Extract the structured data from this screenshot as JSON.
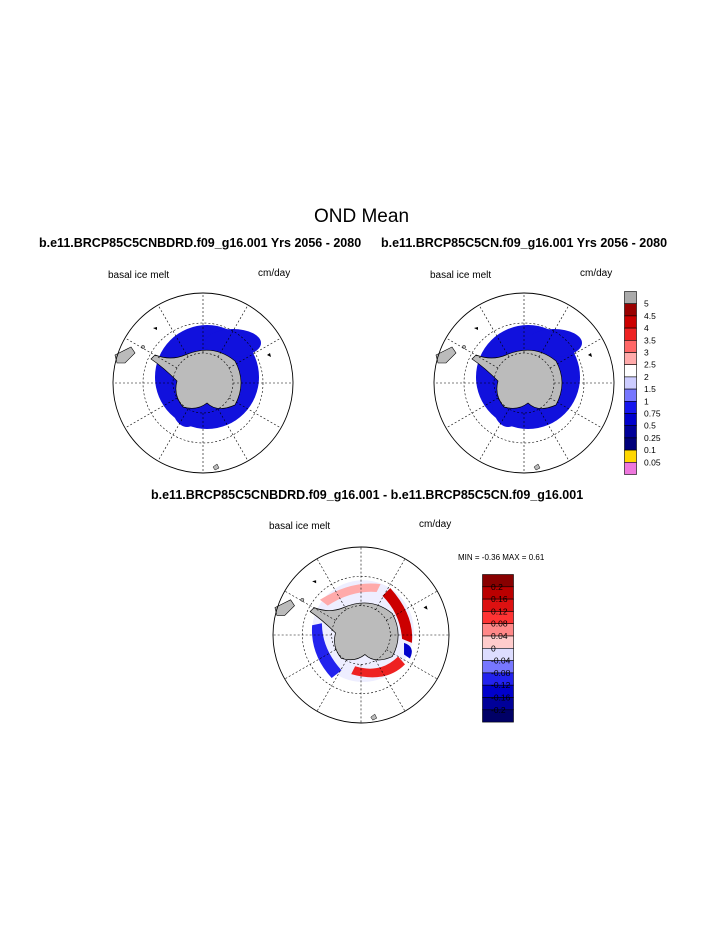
{
  "page": {
    "title": "OND Mean"
  },
  "panels": {
    "left": {
      "case_title": "b.e11.BRCP85C5CNBDRD.f09_g16.001  Yrs 2056 - 2080",
      "field": "basal ice melt",
      "units": "cm/day"
    },
    "right": {
      "case_title": "b.e11.BRCP85C5CN.f09_g16.001  Yrs 2056 - 2080",
      "field": "basal ice melt",
      "units": "cm/day"
    },
    "diff": {
      "case_title": "b.e11.BRCP85C5CNBDRD.f09_g16.001 - b.e11.BRCP85C5CN.f09_g16.001",
      "field": "basal ice melt",
      "units": "cm/day",
      "minmax": "MIN =  -0.36 MAX =   0.61"
    }
  },
  "chart_data": [
    {
      "type": "heatmap",
      "projection": "south polar stereographic",
      "title": "b.e11.BRCP85C5CNBDRD.f09_g16.001  Yrs 2056 - 2080",
      "field": "basal ice melt",
      "units": "cm/day",
      "grid": true
    },
    {
      "type": "heatmap",
      "projection": "south polar stereographic",
      "title": "b.e11.BRCP85C5CN.f09_g16.001  Yrs 2056 - 2080",
      "field": "basal ice melt",
      "units": "cm/day",
      "grid": true,
      "colorbar": {
        "labels": [
          "5",
          "4.5",
          "4",
          "3.5",
          "3",
          "2.5",
          "2",
          "1.5",
          "1",
          "0.75",
          "0.5",
          "0.25",
          "0.1",
          "0.05"
        ],
        "colors": [
          "#aaaaaa",
          "#990000",
          "#cc0000",
          "#ee2222",
          "#ff6666",
          "#ffaaaa",
          "#ffffff",
          "#ccccff",
          "#7777ff",
          "#1515ee",
          "#0000cc",
          "#000099",
          "#00007a",
          "#ffd700",
          "#ee77dd"
        ]
      }
    },
    {
      "type": "heatmap",
      "projection": "south polar stereographic",
      "title": "b.e11.BRCP85C5CNBDRD.f09_g16.001 - b.e11.BRCP85C5CN.f09_g16.001",
      "field": "basal ice melt",
      "units": "cm/day",
      "min": -0.36,
      "max": 0.61,
      "grid": true,
      "colorbar": {
        "labels": [
          "0.2",
          "0.16",
          "0.12",
          "0.08",
          "0.04",
          "0",
          "-0.04",
          "-0.08",
          "-0.12",
          "-0.16",
          "-0.2"
        ],
        "colors": [
          "#880000",
          "#bb0000",
          "#dd1111",
          "#ff3333",
          "#ff8888",
          "#ffcccc",
          "#ddddff",
          "#7777ff",
          "#2222ee",
          "#0000cc",
          "#000099",
          "#000066"
        ]
      }
    }
  ],
  "colors": {
    "land": "#bbbbbb",
    "melt_blue": "#1111dd"
  }
}
